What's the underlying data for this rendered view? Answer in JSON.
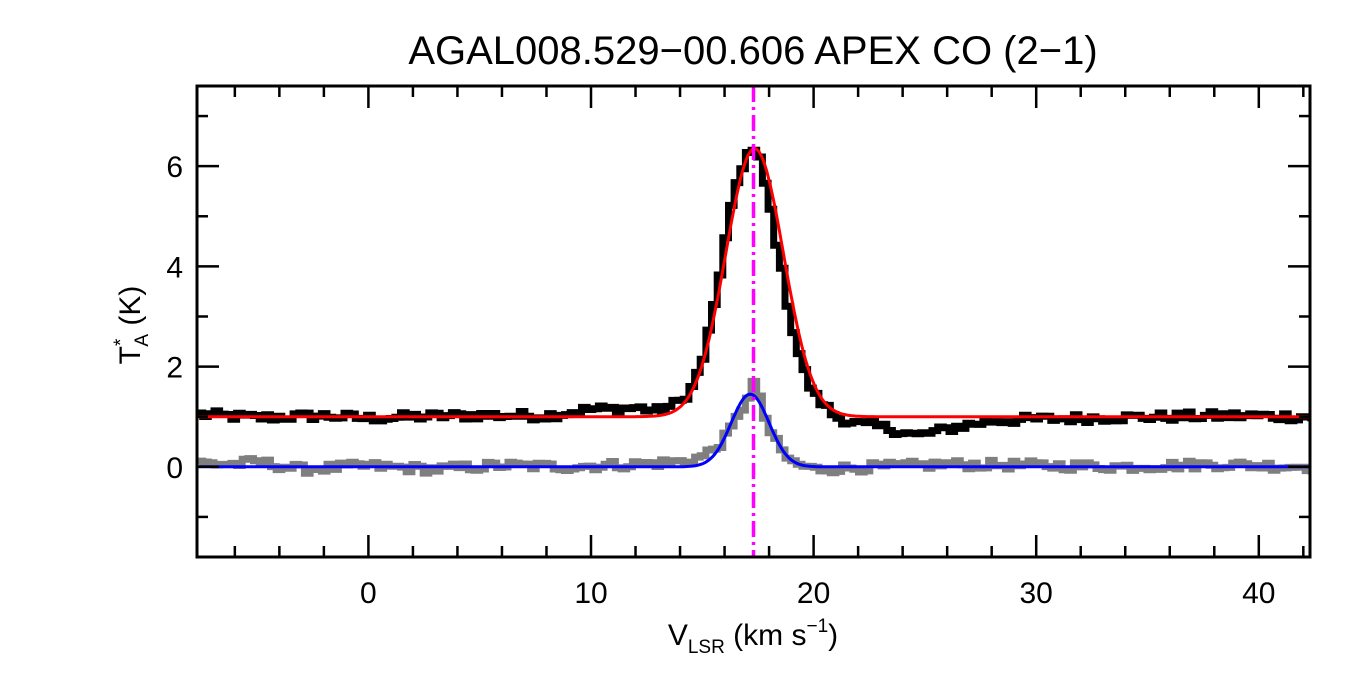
{
  "chart_data": {
    "type": "line",
    "title": "AGAL008.529−00.606  APEX CO (2−1)",
    "xlabel": {
      "main": "V",
      "sub": "LSR",
      "unit_pre": " (km s",
      "sup": "−1",
      "unit_post": ")"
    },
    "ylabel": {
      "main": "T",
      "sup": "*",
      "sub": "A",
      "unit": " (K)"
    },
    "xlim": [
      -7.7,
      42.3
    ],
    "ylim": [
      -1.8,
      7.6
    ],
    "xticks": [
      0,
      10,
      20,
      30,
      40
    ],
    "xtick_labels": [
      "0",
      "10",
      "20",
      "30",
      "40"
    ],
    "yticks": [
      0,
      2,
      4,
      6
    ],
    "ytick_labels": [
      "0",
      "2",
      "4",
      "6"
    ],
    "grid": false,
    "legend": "none",
    "vline": {
      "x": 17.3,
      "style": "dash-dot",
      "color": "#ff00ff"
    },
    "series": [
      {
        "kind": "spectrum-step",
        "color": "#000000",
        "baseline": 1.0,
        "x": [
          -7.7,
          -5.0,
          -2.0,
          0.0,
          2.0,
          5.0,
          8.0,
          10.0,
          11.0,
          12.0,
          13.0,
          13.5,
          14.0,
          14.5,
          15.0,
          15.5,
          16.0,
          16.5,
          17.0,
          17.3,
          17.6,
          18.0,
          18.5,
          19.0,
          19.5,
          20.0,
          21.0,
          22.0,
          23.0,
          24.0,
          24.6,
          25.5,
          26.5,
          28.0,
          30.0,
          33.0,
          36.0,
          39.0,
          42.3
        ],
        "y": [
          1.05,
          0.98,
          1.02,
          0.97,
          1.0,
          1.03,
          1.02,
          1.15,
          1.15,
          1.18,
          1.12,
          1.2,
          1.3,
          1.55,
          2.1,
          3.1,
          4.4,
          5.6,
          6.25,
          6.3,
          6.1,
          5.3,
          4.1,
          2.9,
          2.0,
          1.45,
          1.0,
          0.85,
          0.8,
          0.7,
          0.62,
          0.7,
          0.8,
          0.92,
          0.95,
          0.98,
          1.0,
          1.02,
          1.0
        ]
      },
      {
        "kind": "spectrum-step",
        "color": "#7f7f7f",
        "baseline": 0.0,
        "x": [
          -7.7,
          -6.0,
          -5.0,
          -3.0,
          0.0,
          3.0,
          6.0,
          9.0,
          12.0,
          14.0,
          15.0,
          15.5,
          16.0,
          16.5,
          17.0,
          17.3,
          17.6,
          18.0,
          18.5,
          19.0,
          20.0,
          23.0,
          26.0,
          30.0,
          34.0,
          38.0,
          42.3
        ],
        "y": [
          0.08,
          0.05,
          0.1,
          -0.05,
          0.02,
          -0.05,
          0.03,
          0.0,
          0.05,
          0.1,
          0.2,
          0.35,
          0.55,
          0.9,
          1.35,
          1.7,
          1.3,
          0.75,
          0.35,
          0.1,
          -0.05,
          0.0,
          0.05,
          0.03,
          0.0,
          0.05,
          0.0
        ]
      },
      {
        "kind": "gaussian-fit",
        "color": "#ff0000",
        "baseline": 1.0,
        "amplitude": 5.35,
        "center": 17.35,
        "sigma": 1.3
      },
      {
        "kind": "gaussian-fit",
        "color": "#0000ff",
        "baseline": 0.0,
        "amplitude": 1.45,
        "center": 17.15,
        "sigma": 0.85
      }
    ]
  }
}
